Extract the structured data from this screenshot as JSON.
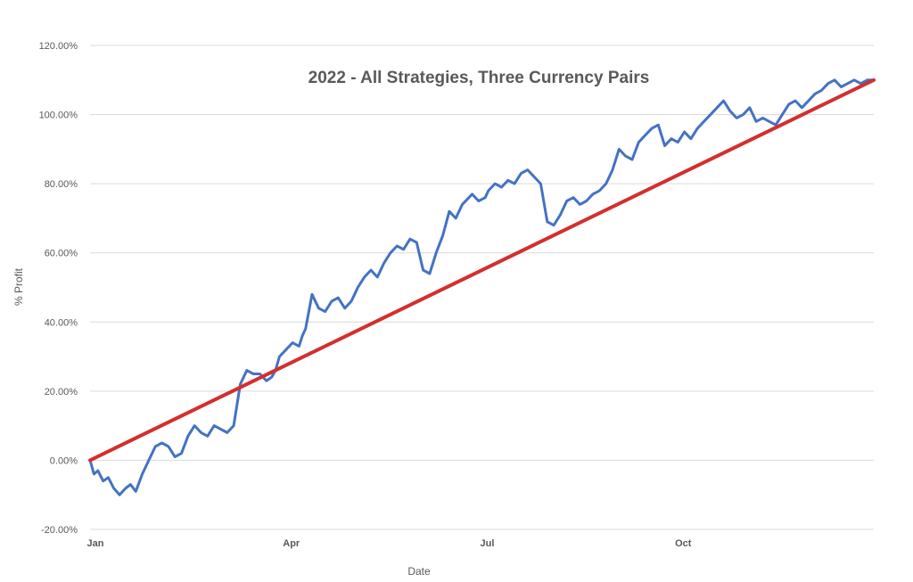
{
  "chart_data": {
    "type": "line",
    "title": "2022 - All Strategies, Three Currency Pairs",
    "xlabel": "Date",
    "ylabel": "% Profit",
    "xlim": [
      0,
      12
    ],
    "ylim": [
      -20,
      120
    ],
    "y_ticks": [
      -20,
      0,
      20,
      40,
      60,
      80,
      100,
      120
    ],
    "y_tick_labels": [
      "-20.00%",
      "0.00%",
      "20.00%",
      "40.00%",
      "60.00%",
      "80.00%",
      "100.00%",
      "120.00%"
    ],
    "x_ticks": [
      0,
      3,
      6,
      9
    ],
    "x_tick_labels": [
      "Jan",
      "Apr",
      "Jul",
      "Oct"
    ],
    "grid": true,
    "legend": "none",
    "series": [
      {
        "color": "#4472C4",
        "x": [
          0,
          0.06,
          0.12,
          0.2,
          0.28,
          0.36,
          0.45,
          0.55,
          0.62,
          0.7,
          0.8,
          0.9,
          1.0,
          1.1,
          1.2,
          1.3,
          1.4,
          1.5,
          1.6,
          1.7,
          1.8,
          1.9,
          2.0,
          2.1,
          2.2,
          2.3,
          2.4,
          2.5,
          2.6,
          2.7,
          2.78,
          2.84,
          2.9,
          3.0,
          3.1,
          3.2,
          3.25,
          3.3,
          3.4,
          3.5,
          3.6,
          3.7,
          3.8,
          3.9,
          4.0,
          4.05,
          4.1,
          4.2,
          4.3,
          4.4,
          4.5,
          4.6,
          4.7,
          4.8,
          4.9,
          5.0,
          5.1,
          5.2,
          5.3,
          5.4,
          5.5,
          5.6,
          5.7,
          5.8,
          5.85,
          5.95,
          6.05,
          6.1,
          6.2,
          6.3,
          6.4,
          6.5,
          6.6,
          6.7,
          6.8,
          6.9,
          7.0,
          7.1,
          7.2,
          7.3,
          7.4,
          7.5,
          7.6,
          7.7,
          7.8,
          7.9,
          8.0,
          8.1,
          8.2,
          8.3,
          8.4,
          8.5,
          8.6,
          8.7,
          8.8,
          8.9,
          9.0,
          9.1,
          9.2,
          9.3,
          9.4,
          9.5,
          9.6,
          9.7,
          9.8,
          9.9,
          10.0,
          10.1,
          10.2,
          10.3,
          10.4,
          10.5,
          10.6,
          10.7,
          10.8,
          10.9,
          11.0,
          11.1,
          11.2,
          11.3,
          11.4,
          11.5,
          11.6,
          11.7,
          11.8,
          11.9,
          12.0
        ],
        "y": [
          0,
          -4,
          -3,
          -6,
          -5,
          -8,
          -10,
          -8,
          -7,
          -9,
          -4,
          0,
          4,
          5,
          4,
          1,
          2,
          7,
          10,
          8,
          7,
          10,
          9,
          8,
          10,
          22,
          26,
          25,
          25,
          23,
          24,
          26,
          30,
          32,
          34,
          33,
          36,
          38,
          48,
          44,
          43,
          46,
          47,
          44,
          46,
          48,
          50,
          53,
          55,
          53,
          57,
          60,
          62,
          61,
          64,
          63,
          55,
          54,
          60,
          65,
          72,
          70,
          74,
          76,
          77,
          75,
          76,
          78,
          80,
          79,
          81,
          80,
          83,
          84,
          82,
          80,
          69,
          68,
          71,
          75,
          76,
          74,
          75,
          77,
          78,
          80,
          84,
          90,
          88,
          87,
          92,
          94,
          96,
          97,
          91,
          93,
          92,
          95,
          93,
          96,
          98,
          100,
          102,
          104,
          101,
          99,
          100,
          102,
          98,
          99,
          98,
          97,
          100,
          103,
          104,
          102,
          104,
          106,
          107,
          109,
          110,
          108,
          109,
          110,
          109,
          110,
          110
        ]
      },
      {
        "color": "#D32F2F",
        "x": [
          0,
          12
        ],
        "y": [
          0,
          110
        ]
      }
    ]
  }
}
